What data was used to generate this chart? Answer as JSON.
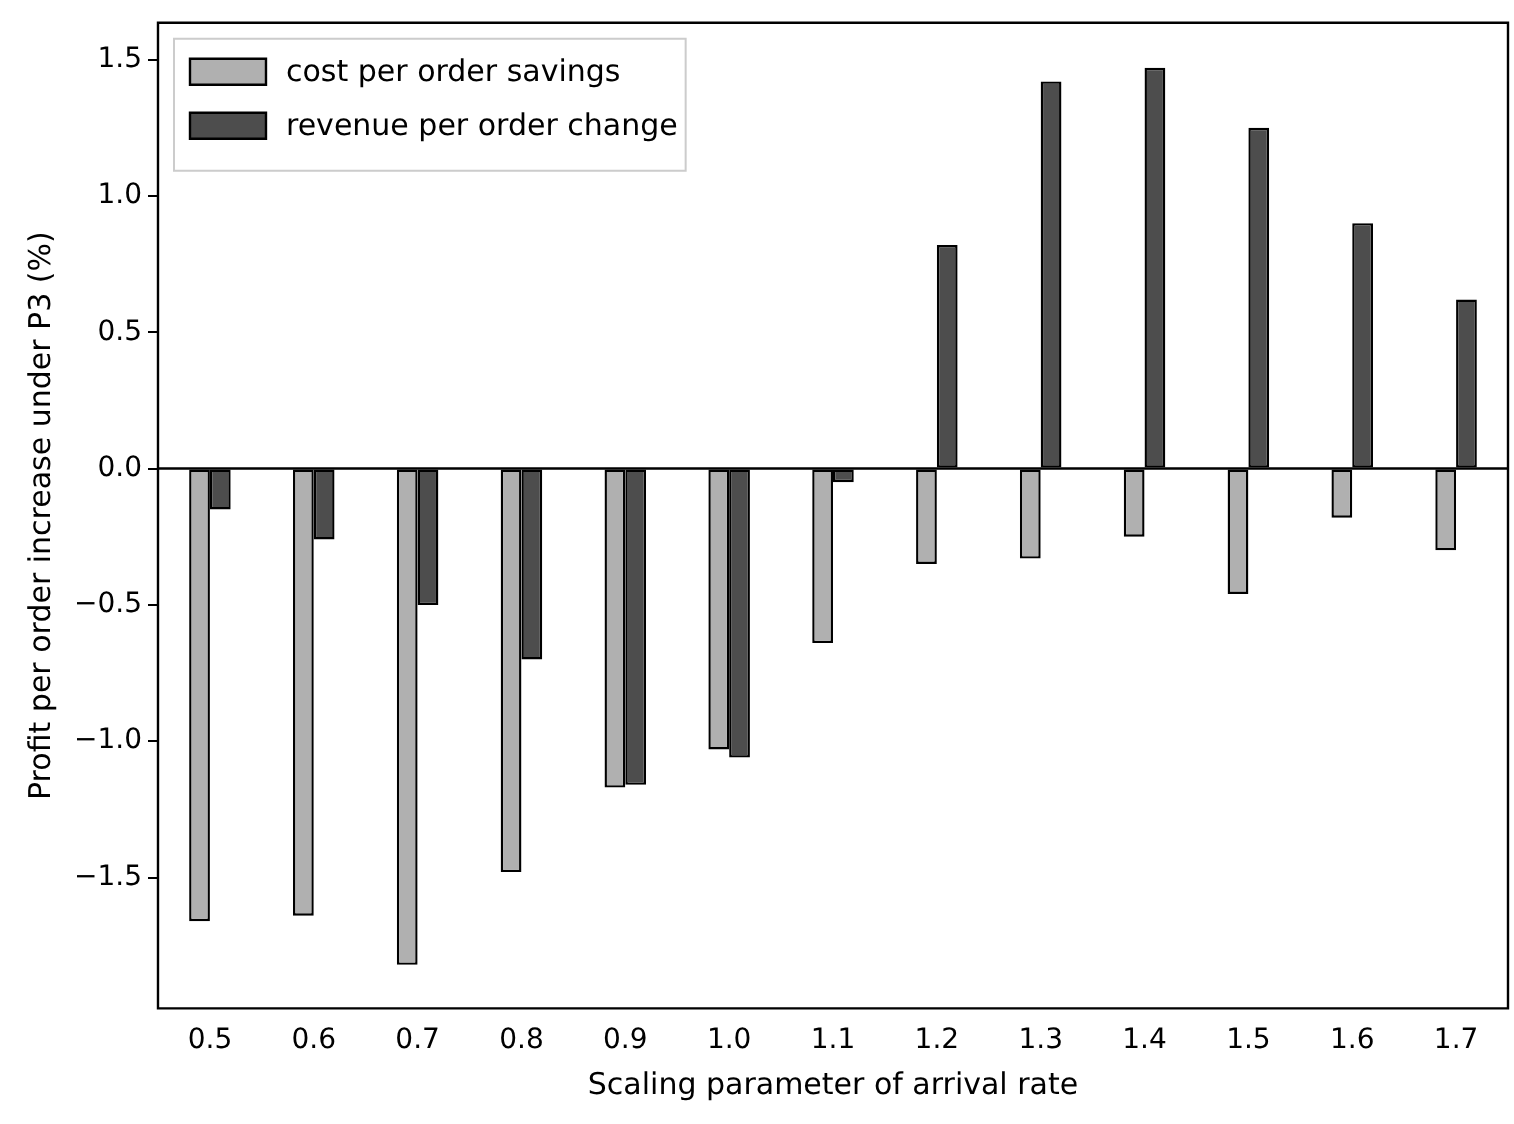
{
  "chart_data": {
    "type": "bar",
    "xlabel": "Scaling parameter of arrival rate",
    "ylabel": "Profit per order increase under P3 (%)",
    "categories": [
      "0.5",
      "0.6",
      "0.7",
      "0.8",
      "0.9",
      "1.0",
      "1.1",
      "1.2",
      "1.3",
      "1.4",
      "1.5",
      "1.6",
      "1.7"
    ],
    "series": [
      {
        "name": "cost per order savings",
        "color": "#b0b0b0",
        "values": [
          -1.66,
          -1.64,
          -1.82,
          -1.48,
          -1.17,
          -1.03,
          -0.64,
          -0.35,
          -0.33,
          -0.25,
          -0.46,
          -0.18,
          -0.3
        ]
      },
      {
        "name": "revenue per order change",
        "color": "#4d4d4d",
        "values": [
          -0.15,
          -0.26,
          -0.5,
          -0.7,
          -1.16,
          -1.06,
          -0.05,
          0.82,
          1.42,
          1.47,
          1.25,
          0.9,
          0.62
        ]
      }
    ],
    "ylim": [
      -1.98,
      1.635
    ],
    "yticks": [
      {
        "value": -1.5,
        "label": "−1.5"
      },
      {
        "value": -1,
        "label": "−1.0"
      },
      {
        "value": -0.5,
        "label": "−0.5"
      },
      {
        "value": 0,
        "label": "0.0"
      },
      0.5,
      {
        "value": 1,
        "label": "1.0"
      },
      1.5
    ],
    "ref_lines": [
      {
        "axis": "y",
        "value": 0,
        "color": "#000000"
      }
    ],
    "legend": "top left",
    "grid": false
  }
}
